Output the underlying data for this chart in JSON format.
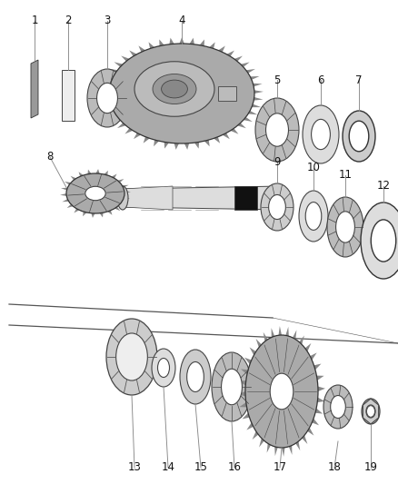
{
  "bg_color": "#ffffff",
  "lc": "#777777",
  "dc": "#333333",
  "pc": "#cccccc",
  "gc": "#aaaaaa",
  "label_fontsize": 8.5
}
